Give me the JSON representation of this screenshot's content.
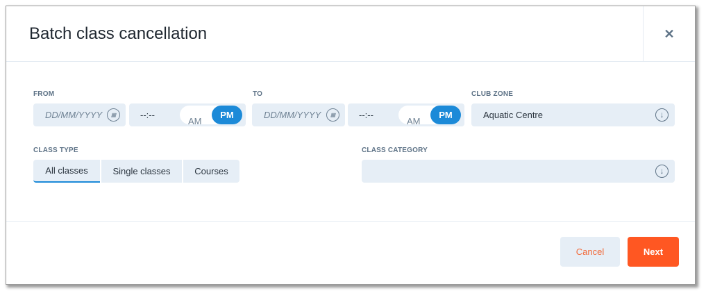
{
  "dialog": {
    "title": "Batch class cancellation",
    "close_icon": "close-icon"
  },
  "from": {
    "label": "FROM",
    "date_placeholder": "DD/MM/YYYY",
    "time_placeholder": "--:--",
    "am": "AM",
    "pm": "PM",
    "selected": "PM"
  },
  "to": {
    "label": "TO",
    "date_placeholder": "DD/MM/YYYY",
    "time_placeholder": "--:--",
    "am": "AM",
    "pm": "PM",
    "selected": "PM"
  },
  "club_zone": {
    "label": "CLUB ZONE",
    "value": "Aquatic Centre"
  },
  "class_type": {
    "label": "CLASS TYPE",
    "options": [
      "All classes",
      "Single classes",
      "Courses"
    ],
    "selected": "All classes"
  },
  "class_category": {
    "label": "CLASS CATEGORY",
    "value": ""
  },
  "footer": {
    "cancel": "Cancel",
    "next": "Next"
  },
  "colors": {
    "accent": "#1c8ad8",
    "primary_button": "#ff5722",
    "cancel_text": "#f26a3a",
    "field_bg": "#e6eef6"
  }
}
